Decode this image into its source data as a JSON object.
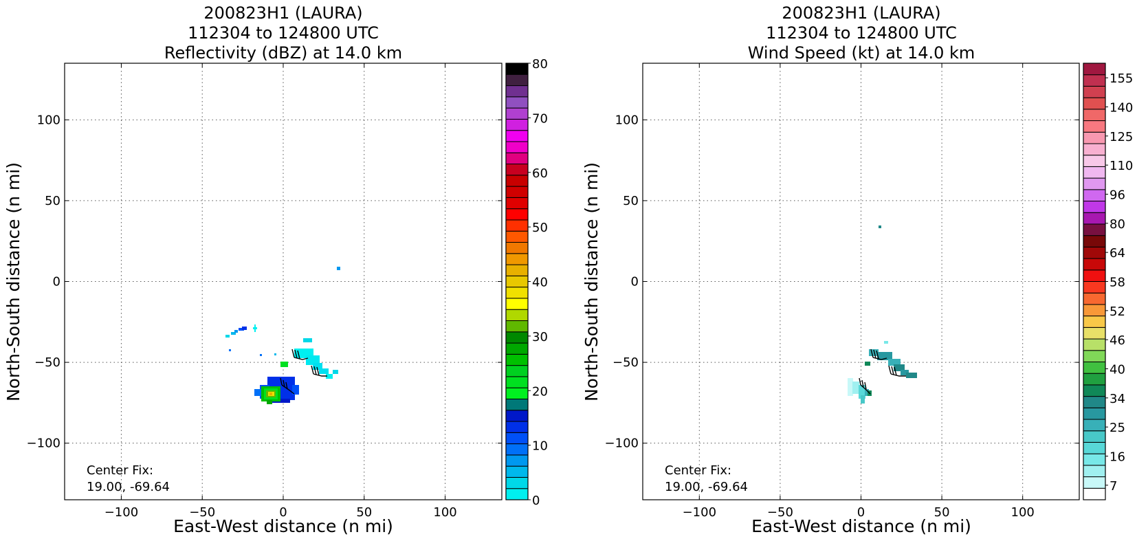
{
  "chart_data": [
    {
      "type": "heatmap",
      "title": [
        "200823H1 (LAURA)",
        "112304 to 124800 UTC",
        "Reflectivity (dBZ) at 14.0 km"
      ],
      "xlabel": "East-West distance (n mi)",
      "ylabel": "North-South distance (n mi)",
      "xlim": [
        -135,
        135
      ],
      "ylim": [
        -135,
        135
      ],
      "xticks": [
        -100,
        -50,
        0,
        50,
        100
      ],
      "yticks": [
        -100,
        -50,
        0,
        50,
        100
      ],
      "xtick_labels": [
        "−100",
        "−50",
        "0",
        "50",
        "100"
      ],
      "ytick_labels": [
        "−100",
        "−50",
        "0",
        "50",
        "100"
      ],
      "grid": true,
      "annotation": [
        "Center Fix:",
        "19.00, -69.64"
      ],
      "colorbar": {
        "ticks": [
          0,
          10,
          20,
          30,
          40,
          50,
          60,
          70,
          80
        ],
        "tick_labels": [
          "0",
          "10",
          "20",
          "30",
          "40",
          "50",
          "60",
          "70",
          "80"
        ],
        "colors": [
          "#00f0f0",
          "#00d8e8",
          "#00b8ec",
          "#0098f0",
          "#0070f8",
          "#0050f8",
          "#0030e8",
          "#0018c8",
          "#007878",
          "#00f020",
          "#00e020",
          "#00d020",
          "#00c000",
          "#00a800",
          "#008800",
          "#60b800",
          "#b0d800",
          "#ffff00",
          "#f0e000",
          "#e8c800",
          "#e8b000",
          "#f09800",
          "#f07800",
          "#ff5800",
          "#ff3000",
          "#ff0000",
          "#e00000",
          "#d00000",
          "#c80000",
          "#c80020",
          "#e00080",
          "#f000c8",
          "#f000f0",
          "#d020e0",
          "#b040d0",
          "#9050c0",
          "#703090",
          "#402040",
          "#000000"
        ]
      },
      "points": [
        {
          "x": -8,
          "y": -68,
          "v": 25
        },
        {
          "x": -4,
          "y": -70,
          "v": 30
        },
        {
          "x": -6,
          "y": -66,
          "v": 38
        },
        {
          "x": 0,
          "y": -68,
          "v": 12
        },
        {
          "x": 20,
          "y": -48,
          "v": 2
        },
        {
          "x": -28,
          "y": -33,
          "v": 4
        }
      ]
    },
    {
      "type": "heatmap",
      "title": [
        "200823H1 (LAURA)",
        "112304 to 124800 UTC",
        "Wind Speed (kt) at 14.0 km"
      ],
      "xlabel": "East-West distance (n mi)",
      "ylabel": "North-South distance (n mi)",
      "xlim": [
        -135,
        135
      ],
      "ylim": [
        -135,
        135
      ],
      "xticks": [
        -100,
        -50,
        0,
        50,
        100
      ],
      "yticks": [
        -100,
        -50,
        0,
        50,
        100
      ],
      "xtick_labels": [
        "−100",
        "−50",
        "0",
        "50",
        "100"
      ],
      "ytick_labels": [
        "−100",
        "−50",
        "0",
        "50",
        "100"
      ],
      "grid": true,
      "annotation": [
        "Center Fix:",
        "19.00, -69.64"
      ],
      "colorbar": {
        "ticks": [
          7,
          16,
          25,
          34,
          40,
          46,
          52,
          58,
          64,
          80,
          96,
          110,
          125,
          140,
          155
        ],
        "tick_labels": [
          "7",
          "16",
          "25",
          "34",
          "40",
          "46",
          "52",
          "58",
          "64",
          "80",
          "96",
          "110",
          "125",
          "140",
          "155"
        ],
        "colors": [
          "#ffffff",
          "#c8f8f8",
          "#a0f0f0",
          "#78e8e8",
          "#58d8d8",
          "#48c8c8",
          "#38b0b8",
          "#2898a0",
          "#208888",
          "#108858",
          "#20a040",
          "#40c040",
          "#80d858",
          "#b8e068",
          "#e8e068",
          "#f8c848",
          "#f89838",
          "#f86830",
          "#f83820",
          "#f01010",
          "#c80808",
          "#a00808",
          "#780808",
          "#781040",
          "#a818b0",
          "#c038e8",
          "#d068f0",
          "#e098f0",
          "#f0b8f0",
          "#f8c8e8",
          "#f8b0d0",
          "#f898b0",
          "#f87880",
          "#f06868",
          "#e05050",
          "#d04050",
          "#c03050",
          "#a01840"
        ]
      },
      "points": [
        {
          "x": 3,
          "y": -70,
          "v": 40
        },
        {
          "x": 25,
          "y": -52,
          "v": 22
        },
        {
          "x": 11,
          "y": 35,
          "v": 25
        },
        {
          "x": -6,
          "y": -65,
          "v": 12
        }
      ]
    }
  ]
}
